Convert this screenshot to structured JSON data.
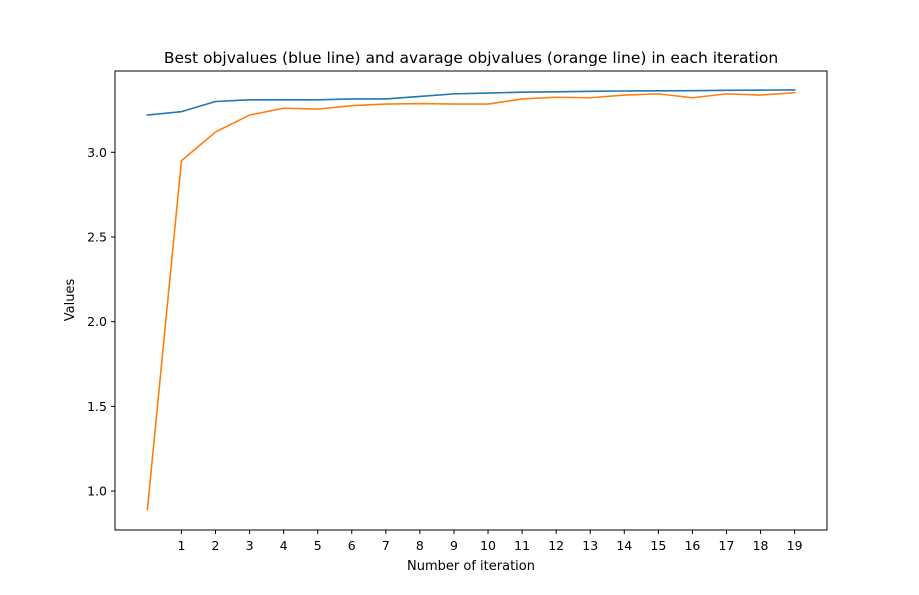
{
  "chart_data": {
    "type": "line",
    "title": "Best objvalues (blue line) and avarage objvalues (orange line) in each iteration",
    "xlabel": "Number of iteration",
    "ylabel": "Values",
    "x": [
      0,
      1,
      2,
      3,
      4,
      5,
      6,
      7,
      8,
      9,
      10,
      11,
      12,
      13,
      14,
      15,
      16,
      17,
      18,
      19
    ],
    "xticks": [
      "1",
      "2",
      "3",
      "4",
      "5",
      "6",
      "7",
      "8",
      "9",
      "10",
      "11",
      "12",
      "13",
      "14",
      "15",
      "16",
      "17",
      "18",
      "19"
    ],
    "yticks": [
      "1.0",
      "1.5",
      "2.0",
      "2.5",
      "3.0"
    ],
    "xlim": [
      -0.95,
      19.95
    ],
    "ylim": [
      0.77,
      3.48
    ],
    "grid": false,
    "series": [
      {
        "color": "#1f77b4",
        "values": [
          3.22,
          3.24,
          3.3,
          3.31,
          3.31,
          3.31,
          3.315,
          3.315,
          3.33,
          3.345,
          3.35,
          3.355,
          3.357,
          3.36,
          3.362,
          3.363,
          3.364,
          3.366,
          3.367,
          3.368
        ]
      },
      {
        "color": "#ff7f0e",
        "values": [
          0.89,
          2.95,
          3.12,
          3.22,
          3.26,
          3.255,
          3.275,
          3.285,
          3.288,
          3.285,
          3.285,
          3.315,
          3.325,
          3.322,
          3.338,
          3.345,
          3.322,
          3.345,
          3.338,
          3.352
        ]
      }
    ]
  }
}
